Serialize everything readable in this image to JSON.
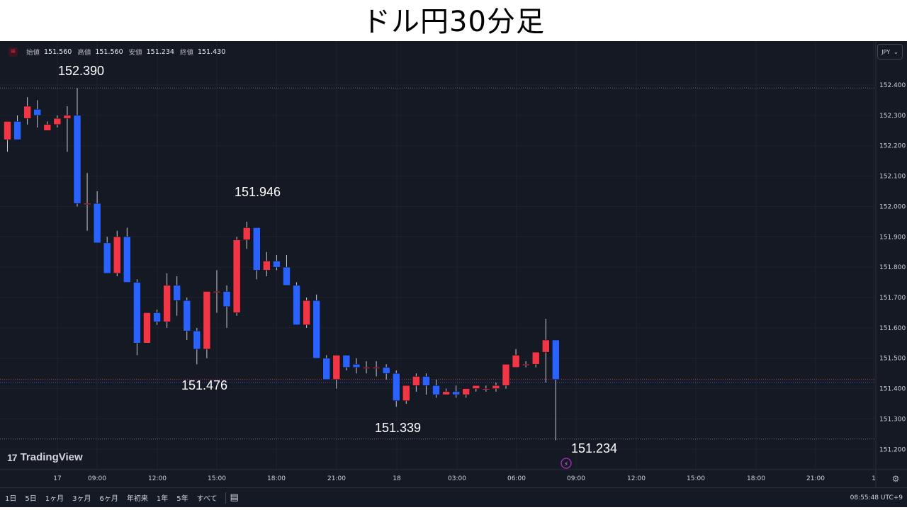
{
  "header": {
    "title": "ドル円30分足"
  },
  "legend": {
    "open_label": "始値",
    "open_value": "151.560",
    "high_label": "高値",
    "high_value": "151.560",
    "low_label": "安値",
    "low_value": "151.234",
    "close_label": "終値",
    "close_value": "151.430"
  },
  "currency": {
    "value": "JPY"
  },
  "logo": {
    "text": "TradingView"
  },
  "toolbar": {
    "ranges": [
      "1日",
      "5日",
      "1ヶ月",
      "3ヶ月",
      "6ヶ月",
      "年初来",
      "1年",
      "5年",
      "すべて"
    ],
    "clock": "08:55:48 UTC+9"
  },
  "colors": {
    "up": "#f23645",
    "down": "#2962ff",
    "background": "#151924",
    "grid": "#1e222d"
  },
  "chart_data": {
    "type": "candlestick",
    "title": "ドル円30分足",
    "y_ticks": [
      "152.400",
      "152.300",
      "152.200",
      "152.100",
      "152.000",
      "151.900",
      "151.800",
      "151.700",
      "151.600",
      "151.500",
      "151.400",
      "151.300",
      "151.200"
    ],
    "ylim": [
      151.17,
      152.59
    ],
    "x_ticks": [
      "17",
      "09:00",
      "12:00",
      "15:00",
      "18:00",
      "21:00",
      "18",
      "03:00",
      "06:00",
      "09:00",
      "12:00",
      "15:00",
      "18:00",
      "21:00",
      "1"
    ],
    "annotations": [
      {
        "text": "152.390",
        "price": 152.39
      },
      {
        "text": "151.946",
        "price": 151.946
      },
      {
        "text": "151.476",
        "price": 151.476
      },
      {
        "text": "151.339",
        "price": 151.339
      },
      {
        "text": "151.234",
        "price": 151.234
      }
    ],
    "reference_lines": [
      152.39,
      151.43,
      151.42,
      151.234
    ],
    "candles": [
      [
        152.22,
        152.28,
        152.18,
        152.28
      ],
      [
        152.28,
        152.3,
        152.22,
        152.22
      ],
      [
        152.29,
        152.36,
        152.27,
        152.33
      ],
      [
        152.32,
        152.35,
        152.26,
        152.3
      ],
      [
        152.25,
        152.28,
        152.25,
        152.27
      ],
      [
        152.27,
        152.3,
        152.26,
        152.29
      ],
      [
        152.29,
        152.33,
        152.18,
        152.3
      ],
      [
        152.3,
        152.39,
        152.0,
        152.01
      ],
      [
        152.01,
        152.11,
        151.92,
        152.01
      ],
      [
        152.01,
        152.05,
        151.89,
        151.88
      ],
      [
        151.88,
        151.9,
        151.79,
        151.78
      ],
      [
        151.78,
        151.92,
        151.77,
        151.9
      ],
      [
        151.9,
        151.93,
        151.76,
        151.75
      ],
      [
        151.75,
        151.76,
        151.51,
        151.55
      ],
      [
        151.55,
        151.65,
        151.56,
        151.65
      ],
      [
        151.65,
        151.66,
        151.61,
        151.62
      ],
      [
        151.62,
        151.78,
        151.6,
        151.74
      ],
      [
        151.74,
        151.77,
        151.64,
        151.69
      ],
      [
        151.69,
        151.7,
        151.56,
        151.59
      ],
      [
        151.59,
        151.6,
        151.48,
        151.53
      ],
      [
        151.53,
        151.72,
        151.5,
        151.72
      ],
      [
        151.72,
        151.79,
        151.65,
        151.72
      ],
      [
        151.72,
        151.74,
        151.6,
        151.67
      ],
      [
        151.65,
        151.9,
        151.64,
        151.89
      ],
      [
        151.89,
        151.95,
        151.86,
        151.93
      ],
      [
        151.93,
        151.92,
        151.76,
        151.79
      ],
      [
        151.79,
        151.85,
        151.77,
        151.82
      ],
      [
        151.82,
        151.84,
        151.79,
        151.8
      ],
      [
        151.8,
        151.84,
        151.74,
        151.74
      ],
      [
        151.74,
        151.75,
        151.61,
        151.61
      ],
      [
        151.61,
        151.7,
        151.6,
        151.69
      ],
      [
        151.69,
        151.71,
        151.5,
        151.5
      ],
      [
        151.5,
        151.51,
        151.43,
        151.43
      ],
      [
        151.43,
        151.51,
        151.4,
        151.51
      ],
      [
        151.51,
        151.51,
        151.46,
        151.47
      ],
      [
        151.48,
        151.5,
        151.45,
        151.47
      ],
      [
        151.47,
        151.49,
        151.45,
        151.47
      ],
      [
        151.47,
        151.49,
        151.44,
        151.47
      ],
      [
        151.47,
        151.48,
        151.43,
        151.45
      ],
      [
        151.45,
        151.46,
        151.34,
        151.36
      ],
      [
        151.36,
        151.41,
        151.35,
        151.41
      ],
      [
        151.41,
        151.45,
        151.39,
        151.44
      ],
      [
        151.44,
        151.45,
        151.38,
        151.41
      ],
      [
        151.41,
        151.43,
        151.37,
        151.38
      ],
      [
        151.38,
        151.4,
        151.38,
        151.39
      ],
      [
        151.39,
        151.41,
        151.37,
        151.38
      ],
      [
        151.38,
        151.4,
        151.37,
        151.4
      ],
      [
        151.4,
        151.41,
        151.39,
        151.41
      ],
      [
        151.4,
        151.41,
        151.39,
        151.4
      ],
      [
        151.4,
        151.42,
        151.39,
        151.41
      ],
      [
        151.41,
        151.48,
        151.4,
        151.48
      ],
      [
        151.47,
        151.53,
        151.47,
        151.51
      ],
      [
        151.48,
        151.49,
        151.47,
        151.48
      ],
      [
        151.48,
        151.52,
        151.47,
        151.52
      ],
      [
        151.52,
        151.63,
        151.42,
        151.56
      ],
      [
        151.56,
        151.56,
        151.23,
        151.43
      ]
    ]
  }
}
